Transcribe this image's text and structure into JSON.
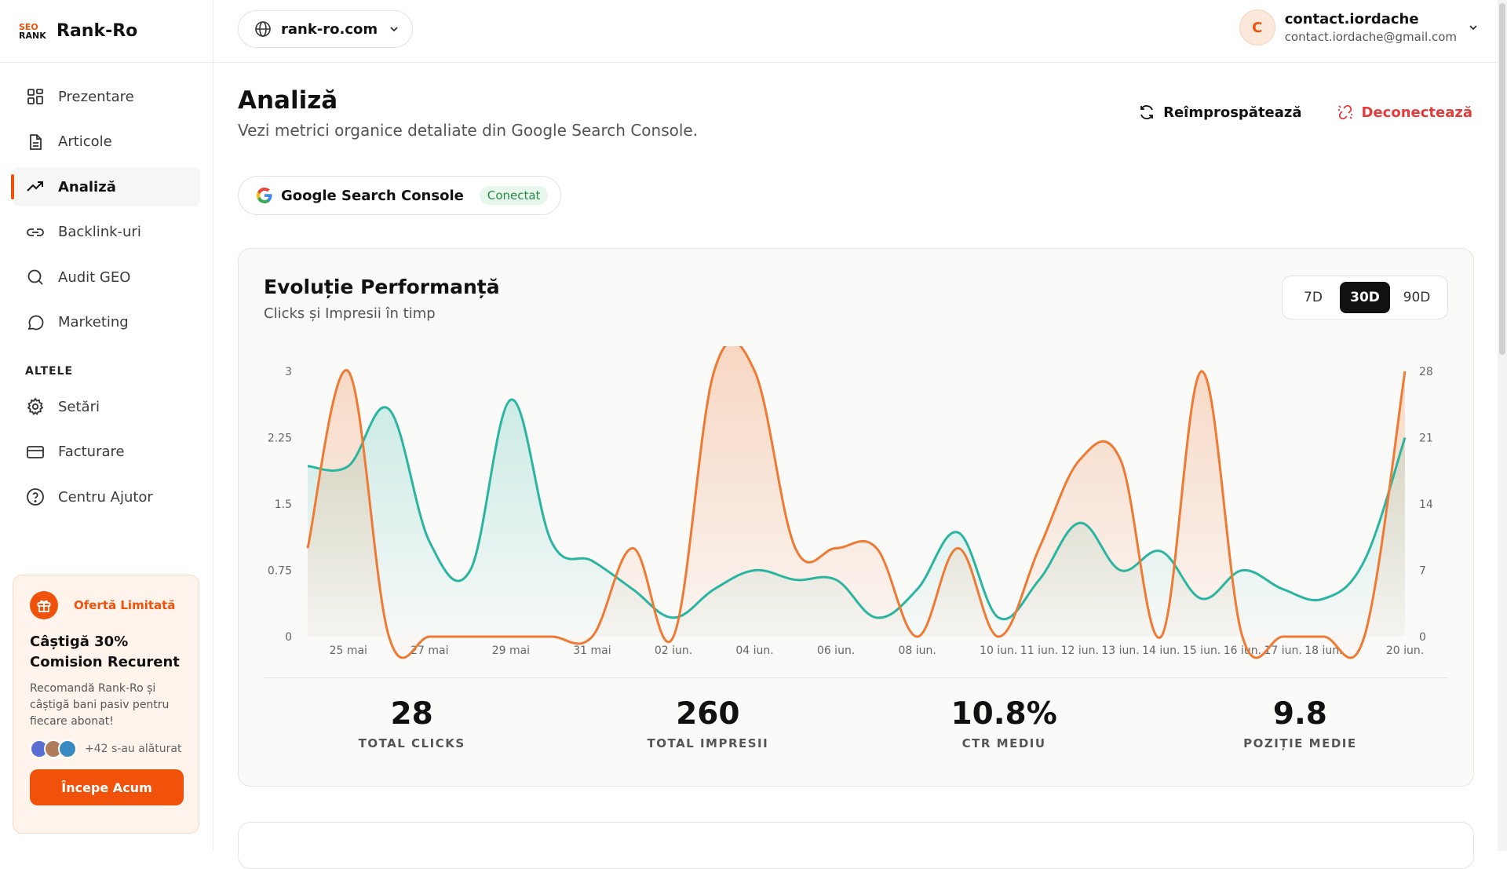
{
  "brand": {
    "logo_line1": "SEO",
    "logo_line2": "RANK",
    "name": "Rank-Ro"
  },
  "nav": {
    "items": [
      {
        "label": "Prezentare",
        "icon": "grid-icon"
      },
      {
        "label": "Articole",
        "icon": "document-icon"
      },
      {
        "label": "Analiză",
        "icon": "trend-icon",
        "active": true
      },
      {
        "label": "Backlink-uri",
        "icon": "link-icon"
      },
      {
        "label": "Audit GEO",
        "icon": "search-icon"
      },
      {
        "label": "Marketing",
        "icon": "chat-icon"
      }
    ],
    "section_label": "ALTELE",
    "other_items": [
      {
        "label": "Setări",
        "icon": "gear-icon"
      },
      {
        "label": "Facturare",
        "icon": "card-icon"
      },
      {
        "label": "Centru Ajutor",
        "icon": "help-icon"
      }
    ]
  },
  "promo": {
    "tag": "Ofertă Limitată",
    "title": "Câștigă 30% Comision Recurent",
    "desc": "Recomandă Rank-Ro și câștigă bani pasiv pentru fiecare abonat!",
    "joined": "+42 s-au alăturat",
    "button": "Începe Acum",
    "accent": "#f0520c"
  },
  "topbar": {
    "domain": "rank-ro.com",
    "user_initial": "C",
    "user_name": "contact.iordache",
    "user_email": "contact.iordache@gmail.com"
  },
  "page": {
    "title": "Analiză",
    "subtitle": "Vezi metrici organice detaliate din Google Search Console.",
    "refresh_label": "Reîmprospătează",
    "disconnect_label": "Deconectează",
    "gsc_name": "Google Search Console",
    "gsc_status": "Conectat"
  },
  "perf": {
    "title": "Evoluție Performanță",
    "subtitle": "Clicks și Impresii în timp",
    "ranges": [
      "7D",
      "30D",
      "90D"
    ],
    "selected_range": "30D",
    "stats": [
      {
        "value": "28",
        "label": "TOTAL CLICKS"
      },
      {
        "value": "260",
        "label": "TOTAL IMPRESII"
      },
      {
        "value": "10.8%",
        "label": "CTR MEDIU"
      },
      {
        "value": "9.8",
        "label": "POZIȚIE MEDIE"
      }
    ]
  },
  "chart_data": {
    "type": "area",
    "x": [
      "24 mai",
      "25 mai",
      "26 mai",
      "27 mai",
      "28 mai",
      "29 mai",
      "30 mai",
      "31 mai",
      "01 iun.",
      "02 iun.",
      "03 iun.",
      "04 iun.",
      "05 iun.",
      "06 iun.",
      "07 iun.",
      "08 iun.",
      "09 iun.",
      "10 iun.",
      "11 iun.",
      "12 iun.",
      "13 iun.",
      "14 iun.",
      "15 iun.",
      "16 iun.",
      "17 iun.",
      "18 iun.",
      "19 iun.",
      "20 iun."
    ],
    "x_tick_labels": [
      "25 mai",
      "27 mai",
      "29 mai",
      "31 mai",
      "02 iun.",
      "04 iun.",
      "06 iun.",
      "08 iun.",
      "10 iun.",
      "11 iun.",
      "12 iun.",
      "13 iun.",
      "14 iun.",
      "15 iun.",
      "16 iun.",
      "17 iun.",
      "18 iun.",
      "20 iun."
    ],
    "x_tick_positions": [
      1,
      3,
      5,
      7,
      9,
      11,
      13,
      15,
      17,
      18,
      19,
      20,
      21,
      22,
      23,
      24,
      25,
      27
    ],
    "series": [
      {
        "axis": "left",
        "color": "#ee7a33",
        "values": [
          1,
          3,
          0,
          0,
          0,
          0,
          0,
          0,
          1,
          0,
          3,
          3,
          1,
          1,
          1,
          0,
          1,
          0,
          1,
          2,
          2,
          0,
          3,
          0,
          0,
          0,
          0,
          3
        ]
      },
      {
        "axis": "right",
        "color": "#2bb5a0",
        "values": [
          18,
          18,
          24,
          10,
          7,
          25,
          10,
          8,
          5,
          2,
          5,
          7,
          6,
          6,
          2,
          5,
          11,
          2,
          6,
          12,
          7,
          9,
          4,
          7,
          5,
          4,
          8,
          21
        ]
      }
    ],
    "y_left": {
      "ticks": [
        "0",
        "0.75",
        "1.5",
        "2.25",
        "3"
      ],
      "range": [
        0,
        3
      ]
    },
    "y_right": {
      "ticks": [
        "0",
        "7",
        "14",
        "21",
        "28"
      ],
      "range": [
        0,
        28
      ]
    },
    "grid": false
  }
}
